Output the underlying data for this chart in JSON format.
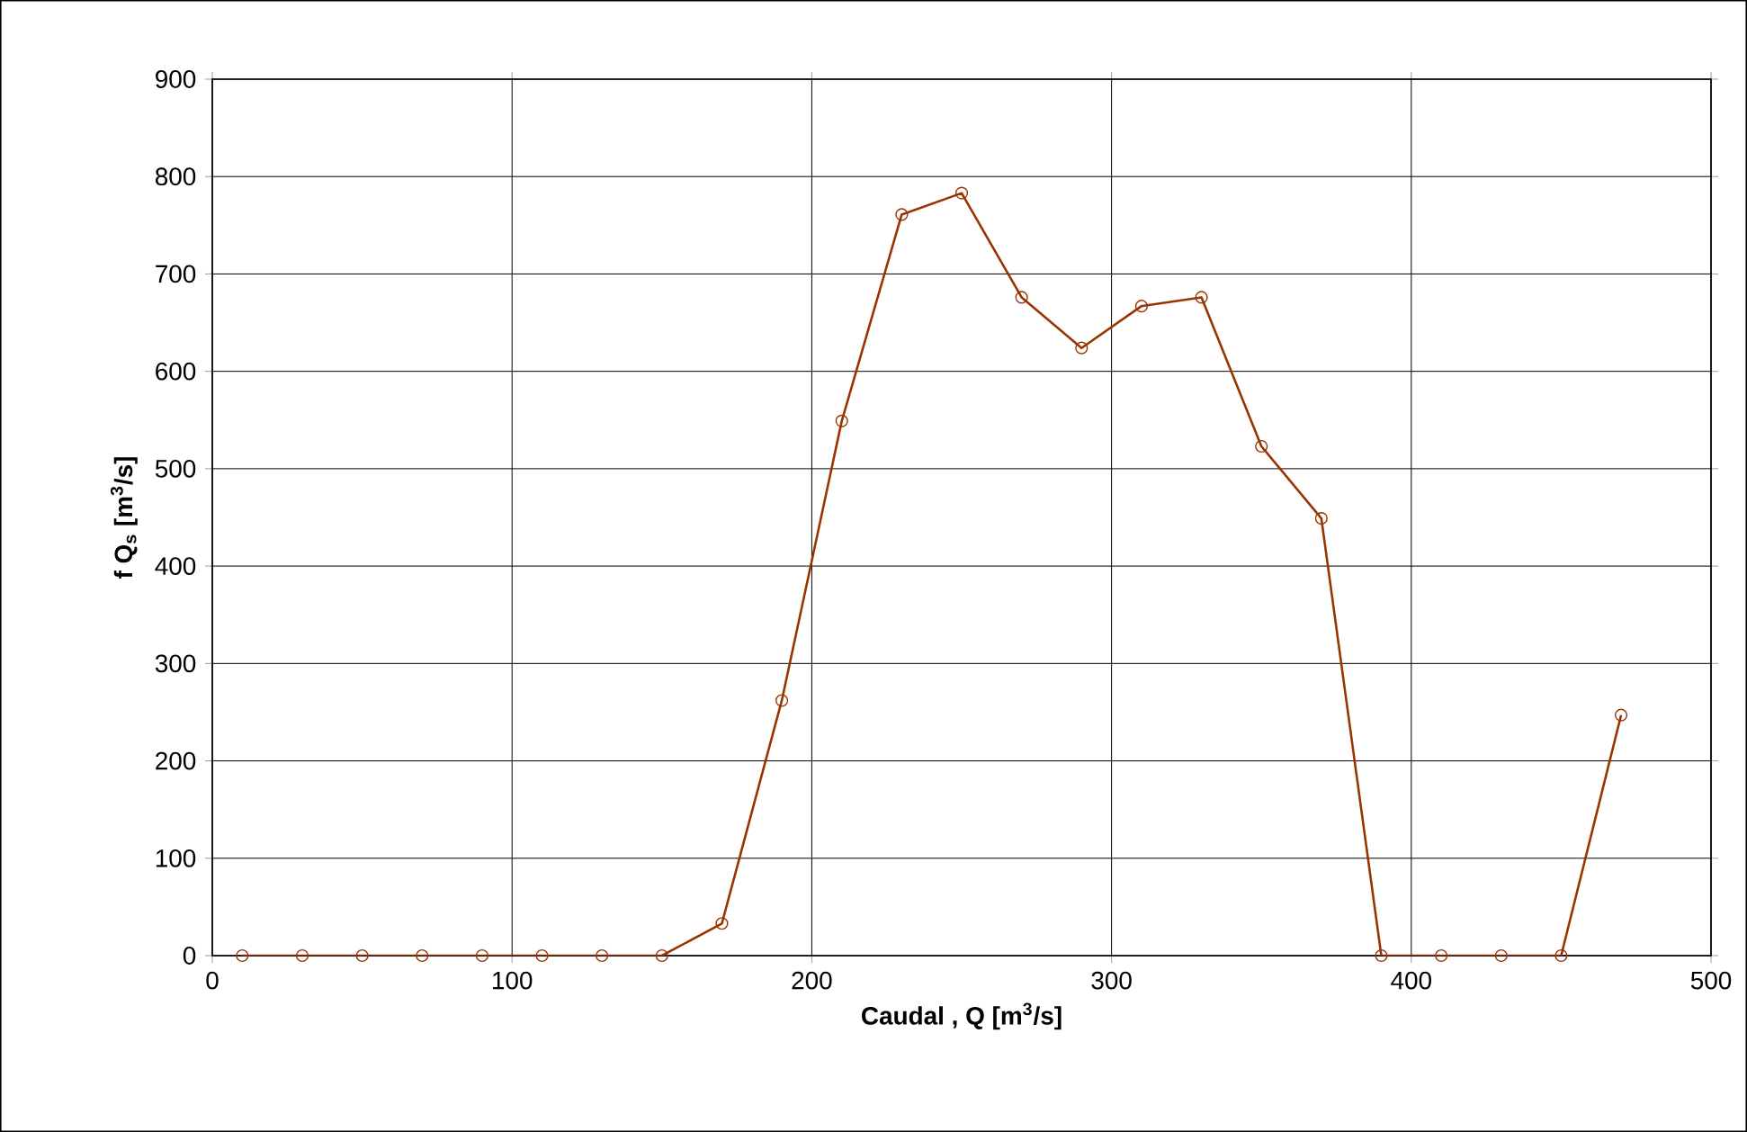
{
  "chart_data": {
    "type": "line",
    "xlabel": "Caudal , Q [m$^{3}$/s]",
    "ylabel": "f Q$_{s}$ [m$^{3}$/s]",
    "x": [
      10,
      30,
      50,
      70,
      90,
      110,
      130,
      150,
      170,
      190,
      210,
      230,
      250,
      270,
      290,
      310,
      330,
      350,
      370,
      390,
      410,
      430,
      450,
      470
    ],
    "series": [
      {
        "color": "#993300",
        "values": [
          0,
          0,
          0,
          0,
          0,
          0,
          0,
          0,
          33,
          262,
          549,
          761,
          783,
          676,
          624,
          667,
          676,
          523,
          449,
          0,
          0,
          0,
          0,
          247
        ]
      }
    ],
    "xlim": [
      0,
      500
    ],
    "xticks": [
      0,
      100,
      200,
      300,
      400,
      500
    ],
    "ylim": [
      0,
      900
    ],
    "yticks": [
      0,
      100,
      200,
      300,
      400,
      500,
      600,
      700,
      800,
      900
    ],
    "grid": true,
    "marker": "circle",
    "line_style": "solid"
  }
}
